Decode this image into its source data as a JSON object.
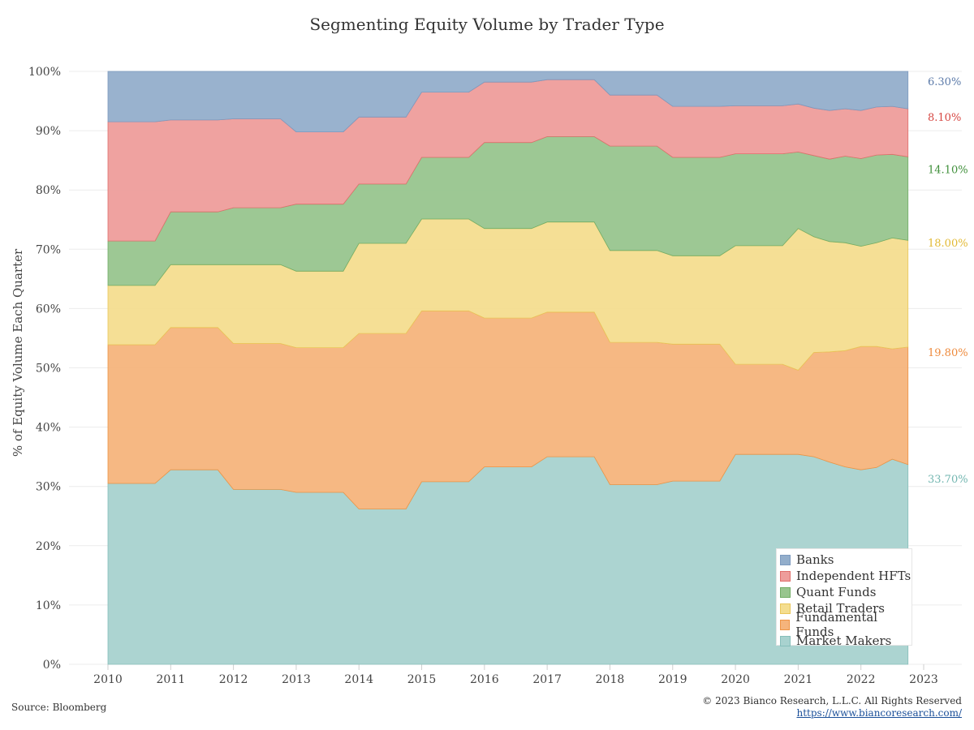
{
  "chart_data": {
    "type": "area",
    "stacked": true,
    "title": "Segmenting Equity Volume by Trader Type",
    "ylabel": "% of Equity Volume Each Quarter",
    "xlabel": "",
    "xlim": [
      2010,
      2023
    ],
    "ylim": [
      0,
      100
    ],
    "x_ticks": [
      "2010",
      "2011",
      "2012",
      "2013",
      "2014",
      "2015",
      "2016",
      "2017",
      "2018",
      "2019",
      "2020",
      "2021",
      "2022",
      "2023"
    ],
    "y_ticks": [
      "0%",
      "10%",
      "20%",
      "30%",
      "40%",
      "50%",
      "60%",
      "70%",
      "80%",
      "90%",
      "100%"
    ],
    "grid": "horizontal",
    "legend_position": "bottom-right",
    "x": [
      2010.0,
      2010.75,
      2011.0,
      2011.75,
      2012.0,
      2012.75,
      2013.0,
      2013.75,
      2014.0,
      2014.75,
      2015.0,
      2015.75,
      2016.0,
      2016.75,
      2017.0,
      2017.75,
      2018.0,
      2018.75,
      2019.0,
      2019.75,
      2020.0,
      2020.75,
      2021.0,
      2021.25,
      2021.5,
      2021.75,
      2022.0,
      2022.25,
      2022.5,
      2022.75
    ],
    "series": [
      {
        "name": "Market Makers",
        "color": "#a8d2cf",
        "values": [
          30.5,
          30.5,
          32.8,
          32.8,
          29.5,
          29.5,
          29.0,
          29.0,
          26.2,
          26.2,
          30.8,
          30.8,
          33.3,
          33.3,
          35.0,
          35.0,
          30.3,
          30.3,
          30.9,
          30.9,
          35.4,
          35.4,
          35.4,
          35.0,
          34.1,
          33.3,
          32.8,
          33.2,
          34.6,
          33.7
        ]
      },
      {
        "name": "Fundamental Funds",
        "color": "#f5b47c",
        "values": [
          23.4,
          23.4,
          24.0,
          24.0,
          24.6,
          24.6,
          24.4,
          24.4,
          29.6,
          29.6,
          28.8,
          28.8,
          25.1,
          25.1,
          24.4,
          24.4,
          24.0,
          24.0,
          23.1,
          23.1,
          15.2,
          15.2,
          14.2,
          17.6,
          18.6,
          19.6,
          20.8,
          20.4,
          18.6,
          19.8
        ]
      },
      {
        "name": "Retail Traders",
        "color": "#f4dd8f",
        "values": [
          10.0,
          10.0,
          10.6,
          10.6,
          13.3,
          13.3,
          12.9,
          12.9,
          15.2,
          15.2,
          15.5,
          15.5,
          15.1,
          15.1,
          15.2,
          15.2,
          15.5,
          15.5,
          14.9,
          14.9,
          20.0,
          20.0,
          23.9,
          19.5,
          18.6,
          18.2,
          16.9,
          17.5,
          18.7,
          18.0
        ]
      },
      {
        "name": "Quant Funds",
        "color": "#98c58e",
        "values": [
          7.5,
          7.5,
          8.9,
          8.9,
          9.6,
          9.6,
          11.3,
          11.3,
          10.0,
          10.0,
          10.4,
          10.4,
          14.5,
          14.5,
          14.4,
          14.4,
          17.6,
          17.6,
          16.6,
          16.6,
          15.5,
          15.5,
          12.9,
          13.7,
          13.9,
          14.6,
          14.8,
          14.8,
          14.1,
          14.1
        ]
      },
      {
        "name": "Independent HFTs",
        "color": "#ee9d9b",
        "values": [
          20.1,
          20.1,
          15.5,
          15.5,
          15.0,
          15.0,
          12.2,
          12.2,
          11.3,
          11.3,
          11.0,
          11.0,
          10.2,
          10.2,
          9.6,
          9.6,
          8.6,
          8.6,
          8.6,
          8.6,
          8.1,
          8.1,
          8.1,
          8.0,
          8.2,
          8.0,
          8.1,
          8.1,
          8.1,
          8.1
        ]
      },
      {
        "name": "Banks",
        "color": "#93aecb",
        "values": [
          8.5,
          8.5,
          8.2,
          8.2,
          8.0,
          8.0,
          10.2,
          10.2,
          7.7,
          7.7,
          3.5,
          3.5,
          1.8,
          1.8,
          1.4,
          1.4,
          4.0,
          4.0,
          5.9,
          5.9,
          5.8,
          5.8,
          5.5,
          6.2,
          6.6,
          6.3,
          6.6,
          6.0,
          5.9,
          6.3
        ]
      }
    ],
    "end_labels": [
      {
        "series": "Banks",
        "text": "6.30%",
        "color": "#5a79a8"
      },
      {
        "series": "Independent HFTs",
        "text": "8.10%",
        "color": "#d64541"
      },
      {
        "series": "Quant Funds",
        "text": "14.10%",
        "color": "#3f8f3a"
      },
      {
        "series": "Retail Traders",
        "text": "18.00%",
        "color": "#e2b934"
      },
      {
        "series": "Fundamental Funds",
        "text": "19.80%",
        "color": "#ee8a3c"
      },
      {
        "series": "Market Makers",
        "text": "33.70%",
        "color": "#72b6b0"
      }
    ]
  },
  "legend": {
    "items": [
      {
        "label": "Banks",
        "color": "#93aecb",
        "border": "#7d9abf"
      },
      {
        "label": "Independent HFTs",
        "color": "#ee9d9b",
        "border": "#e06f6c"
      },
      {
        "label": "Quant Funds",
        "color": "#98c58e",
        "border": "#72ad66"
      },
      {
        "label": "Retail Traders",
        "color": "#f4dd8f",
        "border": "#e9c65a"
      },
      {
        "label": "Fundamental Funds",
        "color": "#f5b47c",
        "border": "#ee9444"
      },
      {
        "label": "Market Makers",
        "color": "#a8d2cf",
        "border": "#86bfbb"
      }
    ]
  },
  "footer": {
    "source": "Source: Bloomberg",
    "copyright": "© 2023 Bianco Research, L.L.C. All Rights Reserved",
    "url": "https://www.biancoresearch.com/"
  }
}
